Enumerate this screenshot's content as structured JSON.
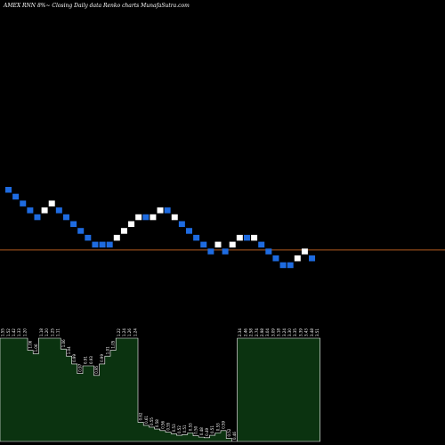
{
  "header": {
    "title": "AMEX RNN 8%~ Closing Daily data Renko charts MunafaSutra.com"
  },
  "colors": {
    "background": "#000000",
    "up_brick": "#ffffff",
    "down_brick": "#1e6be0",
    "reference_line": "#b35a1f",
    "volume_fill": "#0b3310",
    "volume_stroke": "#ffffff"
  },
  "chart_data": [
    {
      "type": "renko",
      "direction": [
        "down",
        "down",
        "down",
        "down",
        "down",
        "up",
        "up",
        "down",
        "down",
        "down",
        "down",
        "down",
        "down",
        "down",
        "down",
        "up",
        "up",
        "up",
        "up",
        "down",
        "up",
        "up",
        "down",
        "up",
        "down",
        "down",
        "down",
        "down",
        "down",
        "up",
        "down",
        "up",
        "up",
        "down",
        "up",
        "down",
        "down",
        "down",
        "down",
        "down",
        "up",
        "up",
        "down"
      ],
      "brick_index": [
        0,
        -1,
        -2,
        -3,
        -4,
        -3,
        -2,
        -3,
        -4,
        -5,
        -6,
        -7,
        -8,
        -8,
        -8,
        -7,
        -6,
        -5,
        -4,
        -4,
        -4,
        -3,
        -3,
        -4,
        -5,
        -6,
        -7,
        -8,
        -9,
        -8,
        -9,
        -8,
        -7,
        -7,
        -7,
        -8,
        -9,
        -10,
        -11,
        -11,
        -10,
        -9,
        -10
      ],
      "reference_line_index": -9.2
    },
    {
      "type": "bar",
      "values": [
        3.33,
        3.33,
        3.33,
        3.33,
        3.33,
        2.94,
        2.83,
        3.33,
        3.33,
        3.33,
        3.33,
        2.98,
        2.75,
        2.5,
        2.19,
        2.44,
        2.44,
        2.13,
        2.5,
        2.75,
        2.94,
        3.33,
        3.33,
        3.33,
        3.33,
        0.62,
        0.52,
        0.46,
        0.4,
        0.35,
        0.3,
        0.25,
        0.2,
        0.22,
        0.28,
        0.18,
        0.14,
        0.12,
        0.2,
        0.28,
        0.35,
        0.1,
        0.0,
        3.33,
        3.33,
        3.33,
        3.33,
        3.33,
        3.33,
        3.33,
        3.33,
        3.33,
        3.33,
        3.33,
        3.33,
        3.33,
        3.33,
        3.33
      ],
      "labels": [
        "1.55",
        "1.52",
        "1.42",
        "1.33",
        "1.20",
        "1.06",
        "1.06",
        "1.18",
        "1.20",
        "1.25",
        "1.11",
        "1.06",
        "1.04",
        "0.99",
        "0.97",
        "0.91",
        "0.93",
        "0.95",
        "0.99",
        "1.01",
        "1.05",
        "1.22",
        "1.24",
        "1.26",
        "1.24",
        "0.62",
        "0.61",
        "0.55",
        "0.58",
        "0.56",
        "0.55",
        "0.53",
        "0.52",
        "0.51",
        "0.53",
        "0.50",
        "0.48",
        "0.49",
        "0.51",
        "0.53",
        "0.59",
        "0.52",
        "0.46",
        "2.34",
        "2.46",
        "2.58",
        "2.74",
        "2.98",
        "3.04",
        "3.09",
        "3.18",
        "3.24",
        "3.30",
        "3.35",
        "3.39",
        "3.43",
        "3.48",
        "3.51"
      ]
    }
  ]
}
